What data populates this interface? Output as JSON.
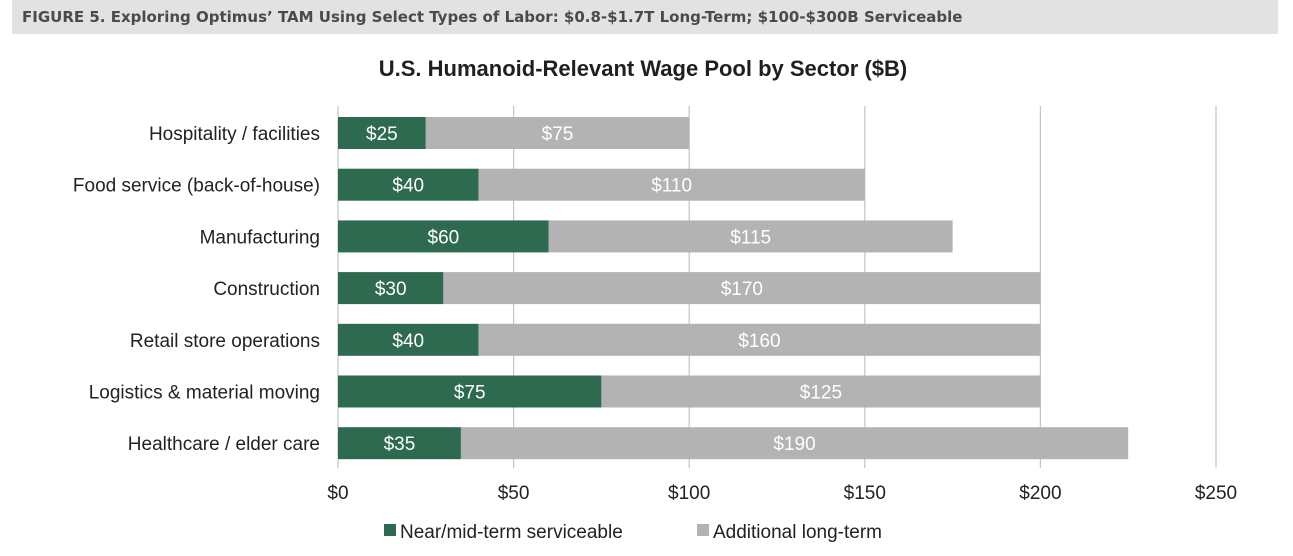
{
  "figure_caption": "FIGURE 5.  Exploring Optimus’ TAM Using Select Types of Labor: $0.8-$1.7T Long-Term; $100-$300B Serviceable",
  "colors": {
    "near_mid_term": "#2d6a4f",
    "additional_long_term": "#b3b3b3",
    "gridline": "#c4c4c4",
    "banner": "#e2e2e2"
  },
  "chart_data": {
    "type": "bar",
    "orientation": "horizontal",
    "stacked": true,
    "title": "U.S. Humanoid-Relevant Wage Pool by Sector ($B)",
    "xlabel": "",
    "ylabel": "",
    "xlim": [
      0,
      250
    ],
    "x_ticks": [
      0,
      50,
      100,
      150,
      200,
      250
    ],
    "x_tick_labels": [
      "$0",
      "$50",
      "$100",
      "$150",
      "$200",
      "$250"
    ],
    "grid": "vertical",
    "legend_position": "bottom",
    "categories": [
      "Hospitality / facilities",
      "Food service (back-of-house)",
      "Manufacturing",
      "Construction",
      "Retail store operations",
      "Logistics & material moving",
      "Healthcare / elder care"
    ],
    "series": [
      {
        "name": "Near/mid-term serviceable",
        "values": [
          25,
          40,
          60,
          30,
          40,
          75,
          35
        ],
        "labels": [
          "$25",
          "$40",
          "$60",
          "$30",
          "$40",
          "$75",
          "$35"
        ]
      },
      {
        "name": "Additional long-term",
        "values": [
          75,
          110,
          115,
          170,
          160,
          125,
          190
        ],
        "labels": [
          "$75",
          "$110",
          "$115",
          "$170",
          "$160",
          "$125",
          "$190"
        ]
      }
    ]
  }
}
